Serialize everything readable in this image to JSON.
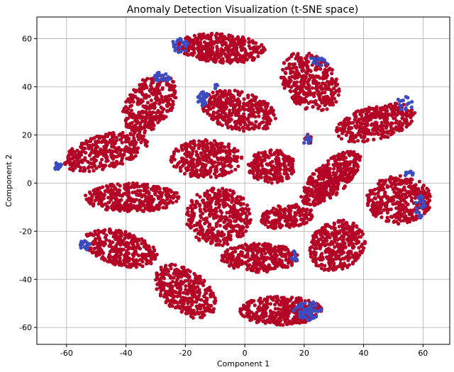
{
  "chart_data": {
    "type": "scatter",
    "title": "Anomaly Detection Visualization (t-SNE space)",
    "xlabel": "Component 1",
    "ylabel": "Component 2",
    "xlim": [
      -70,
      69
    ],
    "ylim": [
      -67,
      69
    ],
    "xticks": [
      -60,
      -40,
      -20,
      0,
      20,
      40,
      60
    ],
    "yticks": [
      -60,
      -40,
      -20,
      0,
      20,
      40,
      60
    ],
    "grid": true,
    "legend": "none",
    "colors": {
      "normal": "#b40426",
      "anomaly": "#3b4cc0"
    },
    "seed": 7,
    "clusters": [
      {
        "cx": -8,
        "cy": 56,
        "rx": 15,
        "ry": 6,
        "rot": -5,
        "n": 380,
        "anomaly": [
          {
            "cx": -22,
            "cy": 57,
            "rx": 3,
            "ry": 3,
            "n": 22
          }
        ]
      },
      {
        "cx": 22,
        "cy": 42,
        "rx": 9,
        "ry": 13,
        "rot": 25,
        "n": 340,
        "anomaly": [
          {
            "cx": 25,
            "cy": 51,
            "rx": 3,
            "ry": 3,
            "n": 15
          }
        ]
      },
      {
        "cx": -32,
        "cy": 33,
        "rx": 8,
        "ry": 13,
        "rot": -25,
        "n": 330,
        "anomaly": [
          {
            "cx": -28,
            "cy": 44,
            "rx": 3,
            "ry": 2,
            "n": 22
          }
        ]
      },
      {
        "cx": -2,
        "cy": 30,
        "rx": 13,
        "ry": 8,
        "rot": -20,
        "n": 360,
        "anomaly": [
          {
            "cx": -14,
            "cy": 35,
            "rx": 2,
            "ry": 3,
            "n": 30
          },
          {
            "cx": -9,
            "cy": 40,
            "rx": 1.5,
            "ry": 1,
            "n": 5
          }
        ]
      },
      {
        "cx": 44,
        "cy": 25,
        "rx": 14,
        "ry": 7,
        "rot": 20,
        "n": 360,
        "anomaly": [
          {
            "cx": 54,
            "cy": 33,
            "rx": 3,
            "ry": 3,
            "n": 15
          }
        ]
      },
      {
        "cx": -47,
        "cy": 13,
        "rx": 15,
        "ry": 7,
        "rot": 20,
        "n": 340,
        "anomaly": [
          {
            "cx": -63,
            "cy": 7,
            "rx": 1.5,
            "ry": 2,
            "n": 20
          }
        ]
      },
      {
        "cx": -13,
        "cy": 10,
        "rx": 12,
        "ry": 8,
        "rot": 0,
        "n": 330,
        "anomaly": []
      },
      {
        "cx": 9,
        "cy": 7,
        "rx": 8,
        "ry": 7,
        "rot": 0,
        "n": 220,
        "anomaly": []
      },
      {
        "cx": 21,
        "cy": 18,
        "rx": 1.5,
        "ry": 2.5,
        "n": 14,
        "rot": 0,
        "anomaly": [
          {
            "cx": 21,
            "cy": 18,
            "rx": 1.5,
            "ry": 2,
            "n": 10
          }
        ]
      },
      {
        "cx": 29,
        "cy": 2,
        "rx": 14,
        "ry": 6,
        "rot": 50,
        "n": 400,
        "anomaly": []
      },
      {
        "cx": -38,
        "cy": -6,
        "rx": 16,
        "ry": 6,
        "rot": 0,
        "n": 380,
        "anomaly": []
      },
      {
        "cx": 52,
        "cy": -7,
        "rx": 11,
        "ry": 10,
        "rot": 0,
        "n": 360,
        "anomaly": [
          {
            "cx": 59,
            "cy": -10,
            "rx": 2,
            "ry": 5,
            "n": 22
          },
          {
            "cx": 55,
            "cy": 4,
            "rx": 2,
            "ry": 1,
            "n": 8
          }
        ]
      },
      {
        "cx": -9,
        "cy": -14,
        "rx": 11,
        "ry": 12,
        "rot": 0,
        "n": 400,
        "anomaly": []
      },
      {
        "cx": 14,
        "cy": -14,
        "rx": 9,
        "ry": 5,
        "rot": 10,
        "n": 180,
        "anomaly": []
      },
      {
        "cx": 31,
        "cy": -26,
        "rx": 9,
        "ry": 11,
        "rot": -30,
        "n": 360,
        "anomaly": []
      },
      {
        "cx": -42,
        "cy": -27,
        "rx": 13,
        "ry": 7,
        "rot": -20,
        "n": 330,
        "anomaly": [
          {
            "cx": -54,
            "cy": -26,
            "rx": 2,
            "ry": 2,
            "n": 22
          }
        ]
      },
      {
        "cx": 5,
        "cy": -31,
        "rx": 13,
        "ry": 6,
        "rot": 0,
        "n": 340,
        "anomaly": [
          {
            "cx": 17,
            "cy": -30,
            "rx": 1.5,
            "ry": 3,
            "n": 10
          }
        ]
      },
      {
        "cx": -20,
        "cy": -45,
        "rx": 8,
        "ry": 13,
        "rot": 40,
        "n": 380,
        "anomaly": []
      },
      {
        "cx": 12,
        "cy": -53,
        "rx": 14,
        "ry": 6,
        "rot": 0,
        "n": 380,
        "anomaly": [
          {
            "cx": 21,
            "cy": -53,
            "rx": 5,
            "ry": 4,
            "n": 60
          }
        ]
      }
    ]
  }
}
